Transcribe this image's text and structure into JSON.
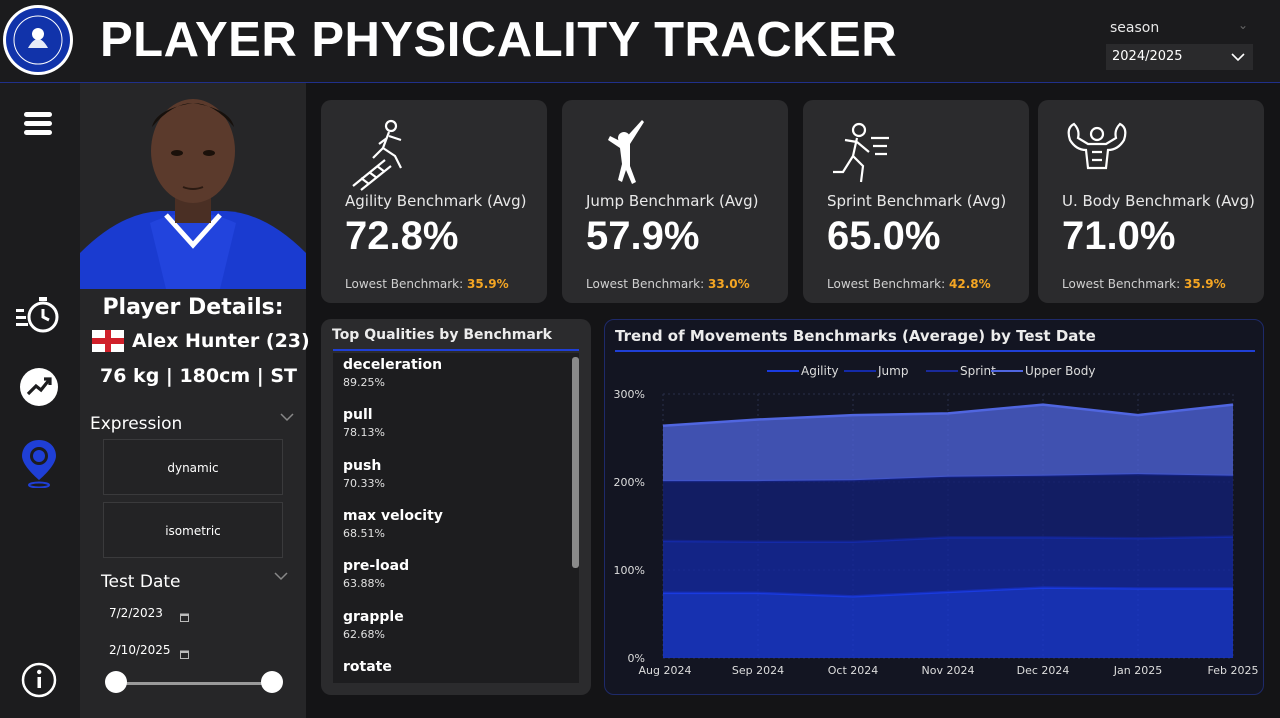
{
  "header": {
    "title": "PLAYER PHYSICALITY TRACKER",
    "season_label": "season",
    "season_value": "2024/2025"
  },
  "colors": {
    "accent": "#1f3fd6",
    "orange": "#f5a623"
  },
  "nav": {
    "icons": [
      "menu-icon",
      "stopwatch-icon",
      "trend-icon",
      "location-icon",
      "info-icon"
    ]
  },
  "player": {
    "details_title": "Player Details:",
    "name": "Alex Hunter (23)",
    "stats": "76 kg | 180cm | ST",
    "expression_label": "Expression",
    "expressions": [
      "dynamic",
      "isometric"
    ],
    "test_date_label": "Test Date",
    "date_from": "7/2/2023",
    "date_to": "2/10/2025"
  },
  "kpis": [
    {
      "title": "Agility Benchmark (Avg)",
      "value": "72.8%",
      "low_label": "Lowest Benchmark:",
      "low_value": "35.9%",
      "icon": "agility-icon"
    },
    {
      "title": "Jump Benchmark (Avg)",
      "value": "57.9%",
      "low_label": "Lowest Benchmark:",
      "low_value": "33.0%",
      "icon": "jump-icon"
    },
    {
      "title": "Sprint Benchmark (Avg)",
      "value": "65.0%",
      "low_label": "Lowest Benchmark:",
      "low_value": "42.8%",
      "icon": "sprint-icon"
    },
    {
      "title": "U. Body Benchmark (Avg)",
      "value": "71.0%",
      "low_label": "Lowest Benchmark:",
      "low_value": "35.9%",
      "icon": "upper-body-icon"
    }
  ],
  "qualities": {
    "title": "Top Qualities by Benchmark",
    "items": [
      {
        "name": "deceleration",
        "value": "89.25%"
      },
      {
        "name": "pull",
        "value": "78.13%"
      },
      {
        "name": "push",
        "value": "70.33%"
      },
      {
        "name": "max velocity",
        "value": "68.51%"
      },
      {
        "name": "pre-load",
        "value": "63.88%"
      },
      {
        "name": "grapple",
        "value": "62.68%"
      },
      {
        "name": "rotate",
        "value": ""
      }
    ]
  },
  "chart_data": {
    "type": "area",
    "title": "Trend of Movements Benchmarks (Average) by Test Date",
    "stacked": true,
    "x": [
      "Aug 2024",
      "Sep 2024",
      "Oct 2024",
      "Nov 2024",
      "Dec 2024",
      "Jan 2025",
      "Feb 2025"
    ],
    "tick_labels": [
      "Aug 2024",
      "Sep 2024",
      "Oct 2024",
      "Nov 2024",
      "Dec 2024",
      "Jan 2025",
      "Feb 2025"
    ],
    "y_ticks": [
      "0%",
      "100%",
      "200%",
      "300%"
    ],
    "ylim": [
      0,
      300
    ],
    "legend": "top-center",
    "series": [
      {
        "name": "Agility",
        "color": "#1a3be0",
        "values": [
          74,
          74,
          70,
          75,
          80,
          79,
          79
        ]
      },
      {
        "name": "Jump",
        "color": "#142aa8",
        "values": [
          59,
          58,
          62,
          62,
          57,
          57,
          59
        ]
      },
      {
        "name": "Sprint",
        "color": "#13207a",
        "values": [
          68,
          69,
          70,
          69,
          70,
          73,
          69
        ]
      },
      {
        "name": "Upper Body",
        "color": "#5066e0",
        "values": [
          63,
          70,
          74,
          72,
          81,
          67,
          81
        ]
      }
    ]
  }
}
